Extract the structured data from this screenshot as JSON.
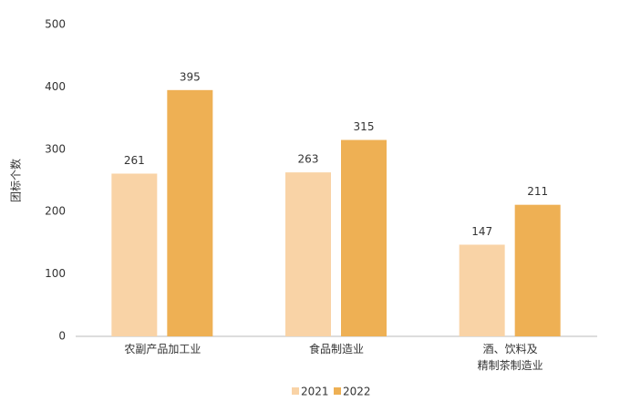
{
  "chart_data": {
    "type": "bar",
    "categories": [
      "农副产品加工业",
      "食品制造业",
      "酒、饮料及\n精制茶制造业"
    ],
    "series": [
      {
        "name": "2021",
        "color": "#f9d3a6",
        "values": [
          261,
          263,
          147
        ]
      },
      {
        "name": "2022",
        "color": "#eeb054",
        "values": [
          395,
          315,
          211
        ]
      }
    ],
    "y_label": "团标个数",
    "ylim": [
      0,
      500
    ],
    "yticks": [
      0,
      100,
      200,
      300,
      400,
      500
    ],
    "grid": false
  }
}
